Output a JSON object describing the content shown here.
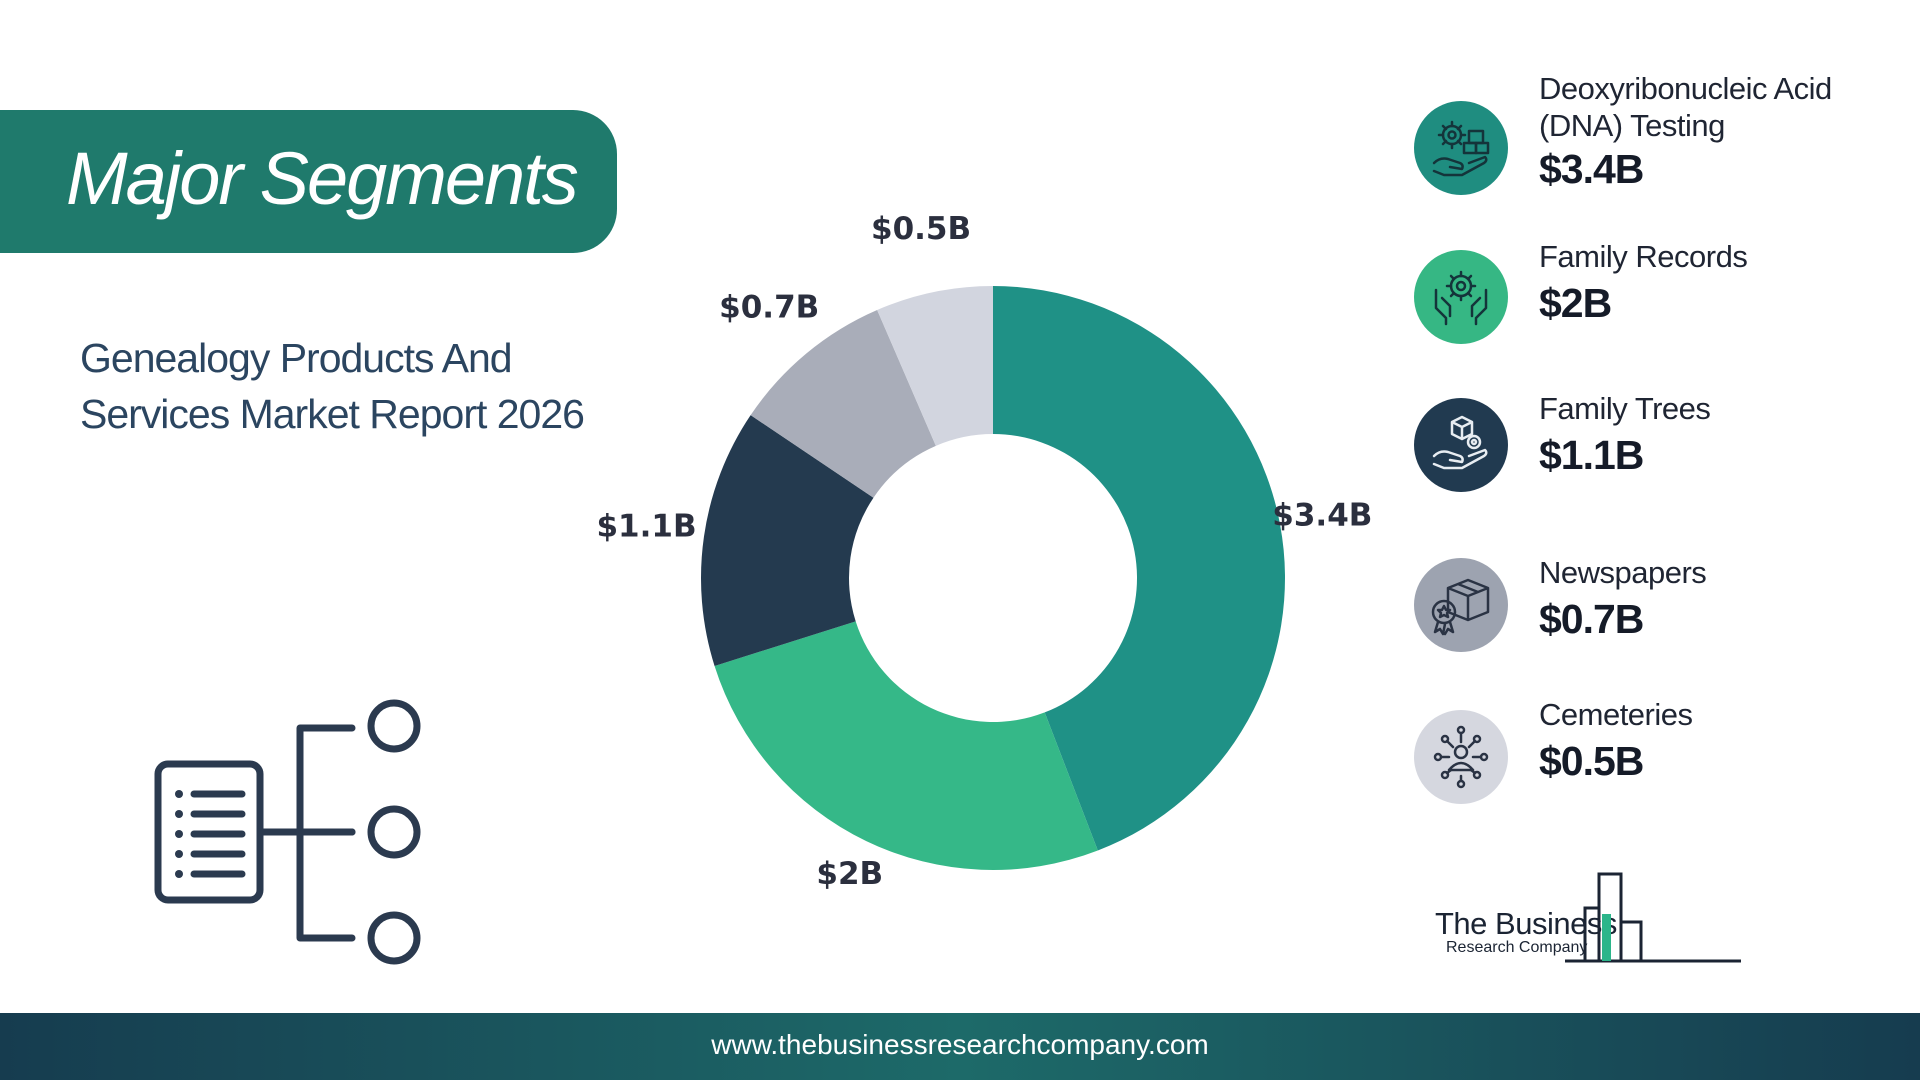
{
  "header": {
    "title": "Major Segments",
    "subtitle": "Genealogy Products And Services Market Report 2026"
  },
  "chart_data": {
    "type": "pie",
    "donut": true,
    "unit": "$B",
    "categories": [
      "Deoxyribonucleic Acid (DNA) Testing",
      "Family Records",
      "Family Trees",
      "Newspapers",
      "Cemeteries"
    ],
    "values": [
      3.4,
      2,
      1.1,
      0.7,
      0.5
    ],
    "data_labels": [
      "$3.4B",
      "$2B",
      "$1.1B",
      "$0.7B",
      "$0.5B"
    ],
    "colors": [
      "#1f9186",
      "#35b888",
      "#243a4f",
      "#a9adb9",
      "#d2d5df"
    ],
    "legend_position": "right"
  },
  "legend": {
    "items": [
      {
        "name": "Deoxyribonucleic Acid (DNA) Testing",
        "value": "$3.4B",
        "icon": "gear-hand-boxes-icon",
        "color": "#1f8d80"
      },
      {
        "name": "Family Records",
        "value": "$2B",
        "icon": "hands-gear-icon",
        "color": "#36b784"
      },
      {
        "name": "Family Trees",
        "value": "$1.1B",
        "icon": "hand-box-gear-icon",
        "color": "#213a50"
      },
      {
        "name": "Newspapers",
        "value": "$0.7B",
        "icon": "box-badge-icon",
        "color": "#9da3b0"
      },
      {
        "name": "Cemeteries",
        "value": "$0.5B",
        "icon": "network-person-icon",
        "color": "#d5d7df"
      }
    ]
  },
  "logo": {
    "line1": "The Business",
    "line2": "Research Company"
  },
  "footer": {
    "url": "www.thebusinessresearchcompany.com"
  }
}
